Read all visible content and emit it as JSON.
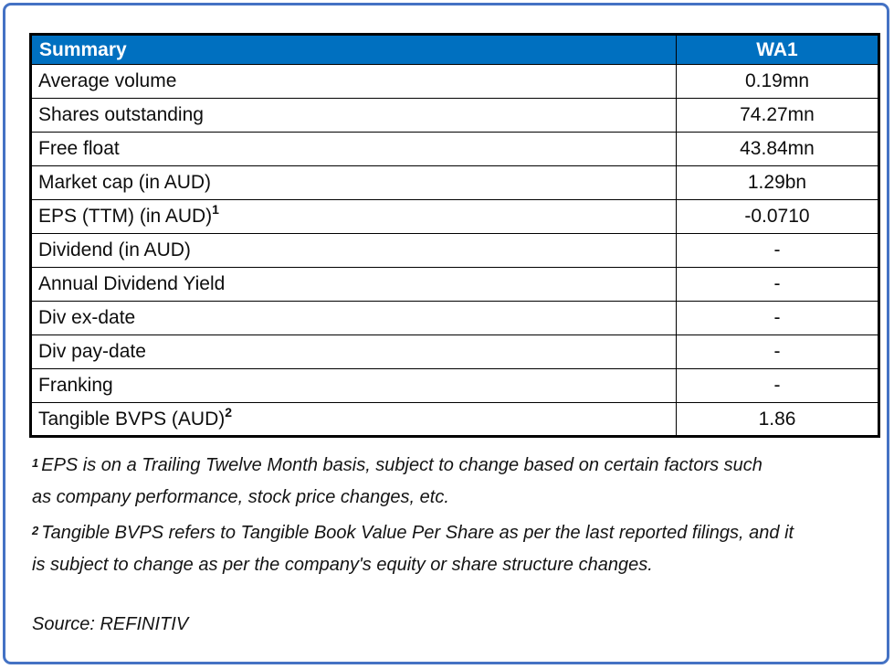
{
  "table": {
    "header": {
      "label": "Summary",
      "value": "WA1"
    },
    "rows": [
      {
        "label": "Average volume",
        "sup": "",
        "value": "0.19mn"
      },
      {
        "label": "Shares outstanding",
        "sup": "",
        "value": "74.27mn"
      },
      {
        "label": "Free float",
        "sup": "",
        "value": "43.84mn"
      },
      {
        "label": "Market cap (in AUD)",
        "sup": "",
        "value": "1.29bn"
      },
      {
        "label": "EPS (TTM) (in AUD)",
        "sup": "1",
        "value": "-0.0710"
      },
      {
        "label": "Dividend (in AUD)",
        "sup": "",
        "value": "-"
      },
      {
        "label": "Annual Dividend Yield",
        "sup": "",
        "value": "-"
      },
      {
        "label": "Div ex-date",
        "sup": "",
        "value": "-"
      },
      {
        "label": "Div pay-date",
        "sup": "",
        "value": "-"
      },
      {
        "label": "Franking",
        "sup": "",
        "value": "-"
      },
      {
        "label": "Tangible BVPS (AUD)",
        "sup": "2",
        "value": "1.86"
      }
    ]
  },
  "footnotes": [
    {
      "sup": "1",
      "lines": [
        "EPS is on a Trailing Twelve Month basis, subject to change based on certain factors such",
        "as company performance, stock price changes, etc."
      ]
    },
    {
      "sup": "2",
      "lines": [
        "Tangible BVPS refers to Tangible Book Value Per Share as per the last reported filings, and it",
        "is subject to change as per the company's equity or share structure changes."
      ]
    }
  ],
  "source": {
    "text": "Source: REFINITIV"
  },
  "colors": {
    "header_bg": "#0070C0",
    "header_text": "#FFFFFF",
    "frame_border": "#4472C4",
    "table_border": "#000000",
    "body_text": "#0D0D0D"
  }
}
